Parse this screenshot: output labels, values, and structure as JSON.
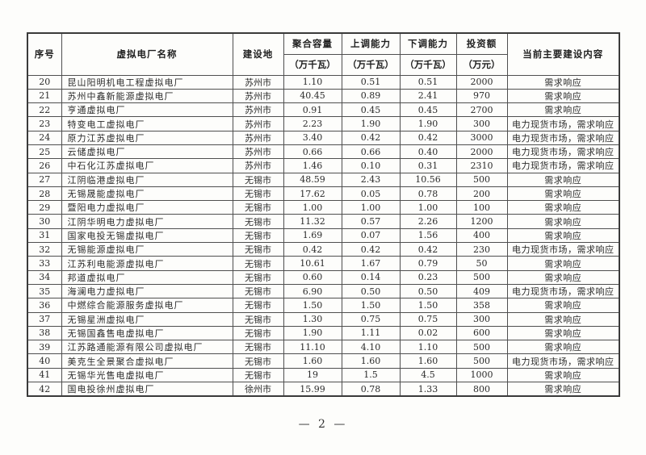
{
  "document": {
    "page_number": "— 2 —"
  },
  "table": {
    "header": {
      "index": "序号",
      "name": "虚拟电厂名称",
      "location": "建设地",
      "capacity": "聚合容量",
      "capacity_unit": "（万千瓦）",
      "up": "上调能力",
      "up_unit": "（万千瓦）",
      "down": "下调能力",
      "down_unit": "（万千瓦）",
      "investment": "投资额",
      "investment_unit": "（万元）",
      "content": "当前主要建设内容"
    },
    "rows": [
      [
        "20",
        "昆山阳明机电工程虚拟电厂",
        "苏州市",
        "1.10",
        "0.51",
        "0.51",
        "2000",
        "需求响应"
      ],
      [
        "21",
        "苏州中鑫新能源虚拟电厂",
        "苏州市",
        "40.45",
        "0.89",
        "2.41",
        "970",
        "需求响应"
      ],
      [
        "22",
        "亨通虚拟电厂",
        "苏州市",
        "0.91",
        "0.45",
        "0.45",
        "2700",
        "需求响应"
      ],
      [
        "23",
        "特变电工虚拟电厂",
        "苏州市",
        "2.23",
        "1.90",
        "1.90",
        "300",
        "电力现货市场，需求响应"
      ],
      [
        "24",
        "原力江苏虚拟电厂",
        "苏州市",
        "3.40",
        "0.42",
        "0.42",
        "3000",
        "电力现货市场，需求响应"
      ],
      [
        "25",
        "云储虚拟电厂",
        "苏州市",
        "0.66",
        "0.66",
        "0.40",
        "2000",
        "电力现货市场，需求响应"
      ],
      [
        "26",
        "中石化江苏虚拟电厂",
        "苏州市",
        "1.46",
        "0.10",
        "0.31",
        "2310",
        "电力现货市场，需求响应"
      ],
      [
        "27",
        "江阴临港虚拟电厂",
        "无锡市",
        "48.59",
        "2.43",
        "10.56",
        "500",
        "需求响应"
      ],
      [
        "28",
        "无锡晟能虚拟电厂",
        "无锡市",
        "17.62",
        "0.05",
        "0.78",
        "200",
        "需求响应"
      ],
      [
        "29",
        "暨阳电力虚拟电厂",
        "无锡市",
        "1.00",
        "1.00",
        "1.00",
        "100",
        "需求响应"
      ],
      [
        "30",
        "江阴华明电力虚拟电厂",
        "无锡市",
        "11.32",
        "0.57",
        "2.26",
        "1200",
        "需求响应"
      ],
      [
        "31",
        "国家电投无锡虚拟电厂",
        "无锡市",
        "1.69",
        "0.07",
        "1.56",
        "400",
        "需求响应"
      ],
      [
        "32",
        "无锡能源虚拟电厂",
        "无锡市",
        "0.42",
        "0.42",
        "0.42",
        "230",
        "电力现货市场，需求响应"
      ],
      [
        "33",
        "江苏利电能源虚拟电厂",
        "无锡市",
        "10.61",
        "1.67",
        "0.79",
        "50",
        "需求响应"
      ],
      [
        "34",
        "邦道虚拟电厂",
        "无锡市",
        "0.60",
        "0.14",
        "0.23",
        "500",
        "需求响应"
      ],
      [
        "35",
        "海澜电力虚拟电厂",
        "无锡市",
        "6.90",
        "0.50",
        "0.50",
        "409",
        "电力现货市场，需求响应"
      ],
      [
        "36",
        "中燃综合能源服务虚拟电厂",
        "无锡市",
        "1.50",
        "1.50",
        "1.50",
        "358",
        "需求响应"
      ],
      [
        "37",
        "无锡星洲虚拟电厂",
        "无锡市",
        "1.30",
        "0.75",
        "0.75",
        "300",
        "需求响应"
      ],
      [
        "38",
        "无锡国鑫售电虚拟电厂",
        "无锡市",
        "1.90",
        "1.11",
        "0.02",
        "600",
        "需求响应"
      ],
      [
        "39",
        "江苏路通能源有限公司虚拟电厂",
        "无锡市",
        "11.10",
        "4.10",
        "1.10",
        "500",
        "需求响应"
      ],
      [
        "40",
        "美克生全景聚合虚拟电厂",
        "无锡市",
        "1.60",
        "1.60",
        "1.60",
        "500",
        "电力现货市场，需求响应"
      ],
      [
        "41",
        "无锡华光售电虚拟电厂",
        "无锡市",
        "19",
        "1.5",
        "4.5",
        "1000",
        "需求响应"
      ],
      [
        "42",
        "国电投徐州虚拟电厂",
        "徐州市",
        "15.99",
        "0.78",
        "1.33",
        "800",
        "需求响应"
      ]
    ]
  }
}
